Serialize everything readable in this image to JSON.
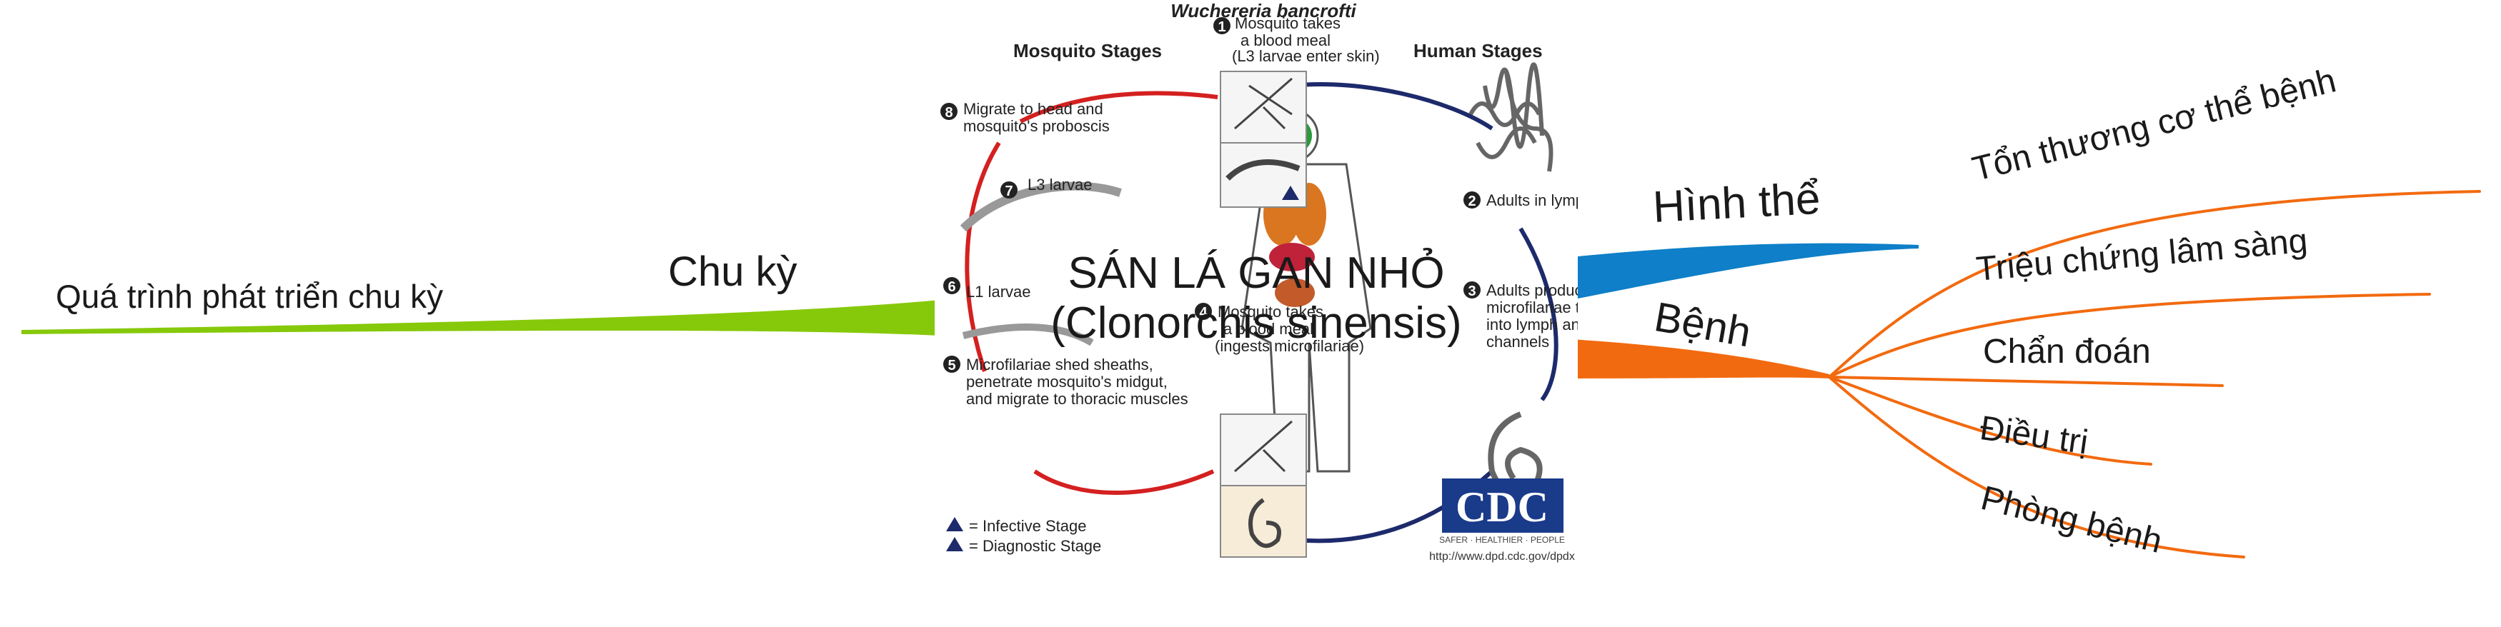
{
  "central": {
    "line1": "SÁN LÁ GAN NHỎ",
    "line2": "(Clonorchis sinensis)"
  },
  "branches": {
    "left": {
      "label": "Chu kỳ",
      "color": "#86c90a",
      "children": [
        "Quá trình phát triển chu kỳ"
      ]
    },
    "right_top": {
      "label": "Hình thể",
      "color": "#0e7fc8"
    },
    "right_bottom": {
      "label": "Bệnh",
      "color": "#f26a0f",
      "children": [
        "Tổn thương cơ thể bệnh",
        "Triệu chứng lâm sàng",
        "Chẩn đoán",
        "Điều trị",
        "Phòng bệnh"
      ]
    }
  },
  "image": {
    "title": "Wuchereria bancrofti",
    "mosquito_heading": "Mosquito Stages",
    "human_heading": "Human Stages",
    "steps": [
      {
        "n": "1",
        "text": [
          "Mosquito takes",
          "a blood meal",
          "(L3 larvae enter skin)"
        ]
      },
      {
        "n": "2",
        "text": [
          "Adults in lymphatics"
        ]
      },
      {
        "n": "3",
        "text": [
          "Adults produce sheathed",
          "microfilariae that migrate",
          "into lymph and blood",
          "channels"
        ]
      },
      {
        "n": "4",
        "text": [
          "Mosquito takes",
          "a blood meal",
          "(ingests microfilariae)"
        ]
      },
      {
        "n": "5",
        "text": [
          "Microfilariae shed sheaths,",
          "penetrate mosquito's midgut,",
          "and migrate to thoracic muscles"
        ]
      },
      {
        "n": "6",
        "text": [
          "L1 larvae"
        ]
      },
      {
        "n": "7",
        "text": [
          "L3 larvae"
        ]
      },
      {
        "n": "8",
        "text": [
          "Migrate to head and",
          "mosquito's proboscis"
        ]
      }
    ],
    "legend": {
      "infective": "= Infective Stage",
      "diagnostic": "= Diagnostic Stage"
    },
    "logo": "CDC",
    "logo_tagline": "SAFER · HEALTHIER · PEOPLE",
    "url": "http://www.dpd.cdc.gov/dpdx"
  }
}
